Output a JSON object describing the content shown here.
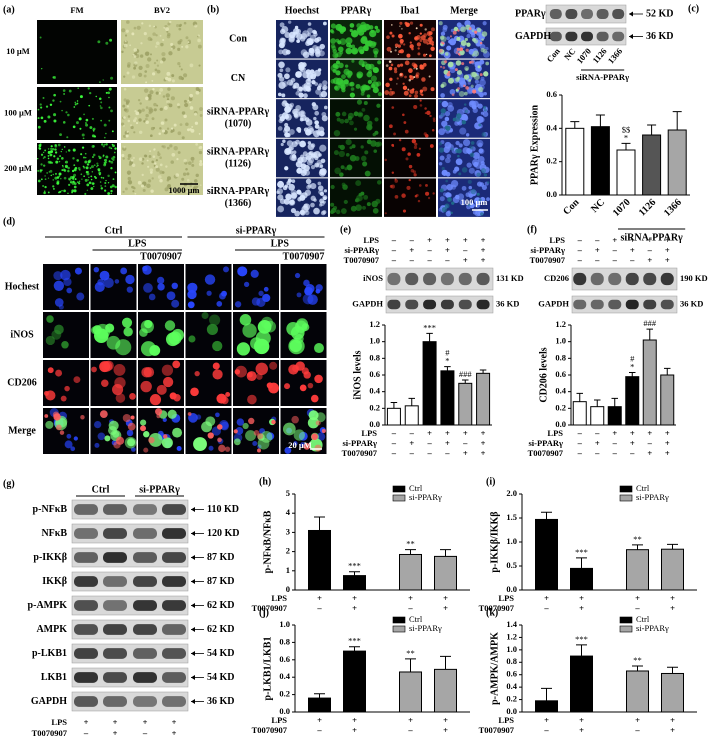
{
  "panels": {
    "a": {
      "label": "(a)",
      "columns": [
        "FM",
        "BV2"
      ],
      "rows": [
        "10 μM",
        "100 μM",
        "200 μM"
      ],
      "scale": "1000 μm"
    },
    "b": {
      "label": "(b)",
      "columns": [
        "Hoechst",
        "PPARγ",
        "Iba1",
        "Merge"
      ],
      "rows": [
        [
          "Con"
        ],
        [
          "CN"
        ],
        [
          "siRNA-PPARγ",
          "(1070)"
        ],
        [
          "siRNA-PPARγ",
          "(1126)"
        ],
        [
          "siRNA-PPARγ",
          "(1366)"
        ]
      ],
      "scale": "100 μm"
    },
    "c": {
      "label": "(c)",
      "blot": {
        "bands": [
          {
            "name": "PPARγ",
            "size": "52 KD"
          },
          {
            "name": "GAPDH",
            "size": "36 KD"
          }
        ],
        "lanes": [
          "Con",
          "NC",
          "1070",
          "1126",
          "1366"
        ],
        "group": "siRNA-PPARγ"
      }
    },
    "d": {
      "label": "(d)",
      "groups": [
        {
          "name": "Ctrl",
          "treatment": "LPS",
          "inhibitor": "T0070907"
        },
        {
          "name": "si-PPARγ",
          "treatment": "LPS",
          "inhibitor": "T0070907"
        }
      ],
      "rows": [
        "Hochest",
        "iNOS",
        "CD206",
        "Merge"
      ],
      "scale": "20 μM"
    },
    "e": {
      "label": "(e)",
      "conditions": [
        {
          "name": "LPS",
          "values": [
            "–",
            "–",
            "+",
            "+",
            "+",
            "+"
          ]
        },
        {
          "name": "si-PPARγ",
          "values": [
            "–",
            "+",
            "–",
            "+",
            "–",
            "+"
          ]
        },
        {
          "name": "T0070907",
          "values": [
            "–",
            "–",
            "–",
            "–",
            "+",
            "+"
          ]
        }
      ],
      "blot": {
        "bands": [
          {
            "name": "iNOS",
            "size": "131 KD"
          },
          {
            "name": "GAPDH",
            "size": "36 KD"
          }
        ]
      }
    },
    "f": {
      "label": "(f)",
      "conditions": [
        {
          "name": "LPS",
          "values": [
            "–",
            "–",
            "+",
            "+",
            "+",
            "+"
          ]
        },
        {
          "name": "si-PPARγ",
          "values": [
            "–",
            "+",
            "–",
            "+",
            "–",
            "+"
          ]
        },
        {
          "name": "T0070907",
          "values": [
            "–",
            "–",
            "–",
            "–",
            "+",
            "+"
          ]
        }
      ],
      "blot": {
        "bands": [
          {
            "name": "CD206",
            "size": "190 KD"
          },
          {
            "name": "GAPDH",
            "size": "36 KD"
          }
        ]
      }
    },
    "g": {
      "label": "(g)",
      "groups": [
        "Ctrl",
        "si-PPARγ"
      ],
      "bands": [
        {
          "name": "p-NFκB",
          "size": "110 KD"
        },
        {
          "name": "NFκB",
          "size": "120 KD"
        },
        {
          "name": "p-IKKβ",
          "size": "87 KD"
        },
        {
          "name": "IKKβ",
          "size": "87 KD"
        },
        {
          "name": "p-AMPK",
          "size": "62 KD"
        },
        {
          "name": "AMPK",
          "size": "62 KD"
        },
        {
          "name": "p-LKB1",
          "size": "54 KD"
        },
        {
          "name": "LKB1",
          "size": "54 KD"
        },
        {
          "name": "GAPDH",
          "size": "36 KD"
        }
      ],
      "conditions": [
        {
          "name": "LPS",
          "values": [
            "+",
            "+",
            "+",
            "+"
          ]
        },
        {
          "name": "T0070907",
          "values": [
            "–",
            "+",
            "–",
            "+"
          ]
        }
      ]
    }
  },
  "chart_data": [
    {
      "type": "bar",
      "ylabel": "PPARγ Expression",
      "categories": [
        "Con",
        "NC",
        "1070",
        "1126",
        "1366"
      ],
      "group_label": "siRNA-PPARγ",
      "values": [
        0.4,
        0.41,
        0.27,
        0.36,
        0.39
      ],
      "errors": [
        0.04,
        0.07,
        0.04,
        0.06,
        0.11
      ],
      "colors": [
        "#ffffff",
        "#000000",
        "#ffffff",
        "#555555",
        "#a6a6a6"
      ],
      "annotations": [
        [],
        [],
        [
          "$$",
          "*"
        ],
        [],
        []
      ],
      "ylim": [
        0,
        0.6
      ],
      "yticks": [
        {
          "value": 0,
          "label": "0.0"
        },
        0.2,
        0.4,
        0.6
      ]
    },
    {
      "type": "bar",
      "ylabel": "iNOS levels",
      "values": [
        0.2,
        0.23,
        1.0,
        0.65,
        0.5,
        0.62
      ],
      "errors": [
        0.07,
        0.09,
        0.1,
        0.05,
        0.04,
        0.04
      ],
      "colors": [
        "#ffffff",
        "#ffffff",
        "#000000",
        "#000000",
        "#a6a6a6",
        "#a6a6a6"
      ],
      "annotations": [
        [],
        [],
        [
          "***"
        ],
        [
          "#",
          "*"
        ],
        [
          "###"
        ],
        []
      ],
      "conditions": [
        {
          "name": "LPS",
          "values": [
            "–",
            "–",
            "+",
            "+",
            "+",
            "+"
          ]
        },
        {
          "name": "si-PPARγ",
          "values": [
            "–",
            "+",
            "–",
            "+",
            "–",
            "+"
          ]
        },
        {
          "name": "T0070907",
          "values": [
            "–",
            "–",
            "–",
            "–",
            "+",
            "+"
          ]
        }
      ],
      "ylim": [
        0,
        1.2
      ],
      "yticks": [
        {
          "value": 0,
          "label": "0.0"
        },
        0.2,
        0.4,
        0.6,
        0.8,
        {
          "value": 1,
          "label": "1.0"
        },
        1.2
      ]
    },
    {
      "type": "bar",
      "ylabel": "CD206 levels",
      "values": [
        0.28,
        0.22,
        0.22,
        0.58,
        1.02,
        0.6
      ],
      "errors": [
        0.1,
        0.08,
        0.1,
        0.05,
        0.13,
        0.08
      ],
      "colors": [
        "#ffffff",
        "#ffffff",
        "#000000",
        "#000000",
        "#a6a6a6",
        "#a6a6a6"
      ],
      "annotations": [
        [],
        [],
        [],
        [
          "#",
          "*"
        ],
        [
          "###"
        ],
        []
      ],
      "conditions": [
        {
          "name": "LPS",
          "values": [
            "–",
            "–",
            "+",
            "+",
            "+",
            "+"
          ]
        },
        {
          "name": "si-PPARγ",
          "values": [
            "–",
            "+",
            "–",
            "+",
            "–",
            "+"
          ]
        },
        {
          "name": "T0070907",
          "values": [
            "–",
            "–",
            "–",
            "–",
            "+",
            "+"
          ]
        }
      ],
      "ylim": [
        0,
        1.2
      ],
      "yticks": [
        {
          "value": 0,
          "label": "0.0"
        },
        0.2,
        0.4,
        0.6,
        0.8,
        {
          "value": 1,
          "label": "1.0"
        },
        1.2
      ]
    },
    {
      "type": "bar",
      "panel": "(h)",
      "ylabel": "p-NFκB/NFκB",
      "series": [
        {
          "name": "Ctrl",
          "color": "#000000",
          "values": [
            3.1,
            0.75
          ],
          "errors": [
            0.7,
            0.2
          ],
          "annotations": [
            [],
            [
              "***"
            ]
          ]
        },
        {
          "name": "si-PPARγ",
          "color": "#a6a6a6",
          "values": [
            1.85,
            1.75
          ],
          "errors": [
            0.25,
            0.35
          ],
          "annotations": [
            [
              "**"
            ],
            []
          ]
        }
      ],
      "conditions": [
        {
          "name": "LPS",
          "values": [
            "+",
            "+",
            "+",
            "+"
          ]
        },
        {
          "name": "T0070907",
          "values": [
            "–",
            "+",
            "–",
            "+"
          ]
        }
      ],
      "ylim": [
        0,
        5
      ],
      "yticks": [
        0,
        1,
        2,
        3,
        4,
        5
      ]
    },
    {
      "type": "bar",
      "panel": "(i)",
      "ylabel": "p-IKKβ/IKKβ",
      "series": [
        {
          "name": "Ctrl",
          "color": "#000000",
          "values": [
            1.47,
            0.45
          ],
          "errors": [
            0.15,
            0.22
          ],
          "annotations": [
            [],
            [
              "***"
            ]
          ]
        },
        {
          "name": "si-PPARγ",
          "color": "#a6a6a6",
          "values": [
            0.84,
            0.85
          ],
          "errors": [
            0.1,
            0.1
          ],
          "annotations": [
            [
              "**"
            ],
            []
          ]
        }
      ],
      "conditions": [
        {
          "name": "LPS",
          "values": [
            "+",
            "+",
            "+",
            "+"
          ]
        },
        {
          "name": "T0070907",
          "values": [
            "–",
            "+",
            "–",
            "+"
          ]
        }
      ],
      "ylim": [
        0,
        2
      ],
      "yticks": [
        {
          "value": 0,
          "label": "0.0"
        },
        0.5,
        {
          "value": 1,
          "label": "1.0"
        },
        1.5,
        {
          "value": 2,
          "label": "2.0"
        }
      ]
    },
    {
      "type": "bar",
      "panel": "(j)",
      "ylabel": "p-LKB1/LKB1",
      "series": [
        {
          "name": "Ctrl",
          "color": "#000000",
          "values": [
            0.16,
            0.7
          ],
          "errors": [
            0.05,
            0.05
          ],
          "annotations": [
            [],
            [
              "***"
            ]
          ]
        },
        {
          "name": "si-PPARγ",
          "color": "#a6a6a6",
          "values": [
            0.46,
            0.49
          ],
          "errors": [
            0.15,
            0.15
          ],
          "annotations": [
            [
              "**"
            ],
            []
          ]
        }
      ],
      "conditions": [
        {
          "name": "LPS",
          "values": [
            "+",
            "+",
            "+",
            "+"
          ]
        },
        {
          "name": "T0070907",
          "values": [
            "–",
            "+",
            "–",
            "+"
          ]
        }
      ],
      "ylim": [
        0,
        1
      ],
      "yticks": [
        {
          "value": 0,
          "label": "0.0"
        },
        0.2,
        0.4,
        0.6,
        0.8,
        {
          "value": 1,
          "label": "1.0"
        }
      ]
    },
    {
      "type": "bar",
      "panel": "(k)",
      "ylabel": "p-AMPK/AMPK",
      "series": [
        {
          "name": "Ctrl",
          "color": "#000000",
          "values": [
            0.18,
            0.9
          ],
          "errors": [
            0.2,
            0.18
          ],
          "annotations": [
            [],
            [
              "***"
            ]
          ]
        },
        {
          "name": "si-PPARγ",
          "color": "#a6a6a6",
          "values": [
            0.66,
            0.62
          ],
          "errors": [
            0.08,
            0.1
          ],
          "annotations": [
            [
              "**"
            ],
            []
          ]
        }
      ],
      "conditions": [
        {
          "name": "LPS",
          "values": [
            "+",
            "+",
            "+",
            "+"
          ]
        },
        {
          "name": "T0070907",
          "values": [
            "–",
            "+",
            "–",
            "+"
          ]
        }
      ],
      "ylim": [
        0,
        1.4
      ],
      "yticks": [
        {
          "value": 0,
          "label": "0.0"
        },
        0.2,
        0.4,
        0.6,
        0.8,
        {
          "value": 1,
          "label": "1.0"
        },
        1.2,
        1.4
      ]
    }
  ]
}
